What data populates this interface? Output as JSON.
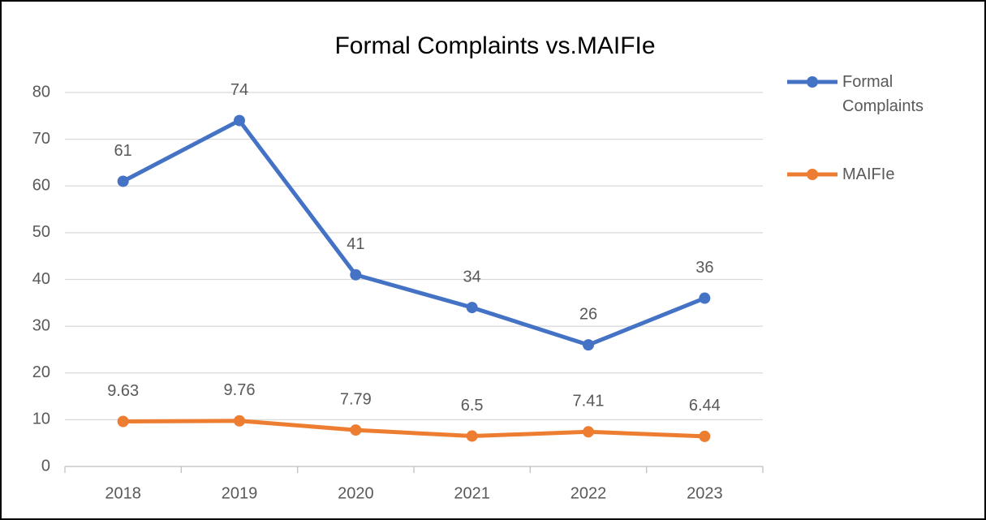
{
  "chart_data": {
    "type": "line",
    "title": "Formal Complaints vs.MAIFIe",
    "categories": [
      "2018",
      "2019",
      "2020",
      "2021",
      "2022",
      "2023"
    ],
    "series": [
      {
        "name": "Formal Complaints",
        "color": "#4472c4",
        "values": [
          61,
          74,
          41,
          34,
          26,
          36
        ]
      },
      {
        "name": "MAIFIe",
        "color": "#ed7d31",
        "values": [
          9.63,
          9.76,
          7.79,
          6.5,
          7.41,
          6.44
        ]
      }
    ],
    "ylim": [
      0,
      80
    ],
    "yticks": [
      0,
      10,
      20,
      30,
      40,
      50,
      60,
      70,
      80
    ],
    "grid": true,
    "legend": "right"
  }
}
